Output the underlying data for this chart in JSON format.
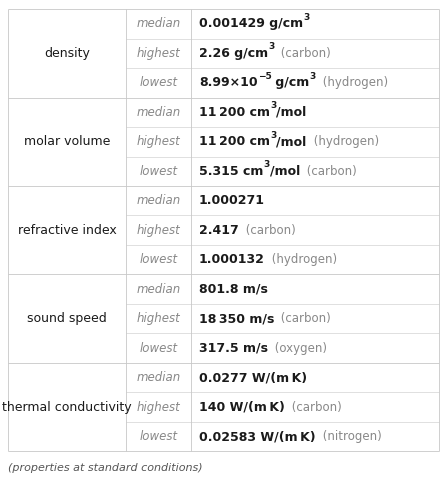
{
  "rows": [
    {
      "property": "density",
      "entries": [
        {
          "rank": "median",
          "value_parts": [
            {
              "text": "0.001429 g/cm",
              "bold": true,
              "sup": null
            },
            {
              "text": "3",
              "bold": true,
              "sup": true
            }
          ],
          "suffix": ""
        },
        {
          "rank": "highest",
          "value_parts": [
            {
              "text": "2.26 g/cm",
              "bold": true,
              "sup": null
            },
            {
              "text": "3",
              "bold": true,
              "sup": true
            }
          ],
          "suffix": " (carbon)"
        },
        {
          "rank": "lowest",
          "value_parts": [
            {
              "text": "8.99×10",
              "bold": true,
              "sup": null
            },
            {
              "text": "−5",
              "bold": true,
              "sup": true
            },
            {
              "text": " g/cm",
              "bold": true,
              "sup": null
            },
            {
              "text": "3",
              "bold": true,
              "sup": true
            }
          ],
          "suffix": " (hydrogen)"
        }
      ]
    },
    {
      "property": "molar volume",
      "entries": [
        {
          "rank": "median",
          "value_parts": [
            {
              "text": "11 200 cm",
              "bold": true,
              "sup": null
            },
            {
              "text": "3",
              "bold": true,
              "sup": true
            },
            {
              "text": "/mol",
              "bold": true,
              "sup": null
            }
          ],
          "suffix": ""
        },
        {
          "rank": "highest",
          "value_parts": [
            {
              "text": "11 200 cm",
              "bold": true,
              "sup": null
            },
            {
              "text": "3",
              "bold": true,
              "sup": true
            },
            {
              "text": "/mol",
              "bold": true,
              "sup": null
            }
          ],
          "suffix": " (hydrogen)"
        },
        {
          "rank": "lowest",
          "value_parts": [
            {
              "text": "5.315 cm",
              "bold": true,
              "sup": null
            },
            {
              "text": "3",
              "bold": true,
              "sup": true
            },
            {
              "text": "/mol",
              "bold": true,
              "sup": null
            }
          ],
          "suffix": " (carbon)"
        }
      ]
    },
    {
      "property": "refractive index",
      "entries": [
        {
          "rank": "median",
          "value_parts": [
            {
              "text": "1.000271",
              "bold": true,
              "sup": null
            }
          ],
          "suffix": ""
        },
        {
          "rank": "highest",
          "value_parts": [
            {
              "text": "2.417",
              "bold": true,
              "sup": null
            }
          ],
          "suffix": " (carbon)"
        },
        {
          "rank": "lowest",
          "value_parts": [
            {
              "text": "1.000132",
              "bold": true,
              "sup": null
            }
          ],
          "suffix": " (hydrogen)"
        }
      ]
    },
    {
      "property": "sound speed",
      "entries": [
        {
          "rank": "median",
          "value_parts": [
            {
              "text": "801.8 m/s",
              "bold": true,
              "sup": null
            }
          ],
          "suffix": ""
        },
        {
          "rank": "highest",
          "value_parts": [
            {
              "text": "18 350 m/s",
              "bold": true,
              "sup": null
            }
          ],
          "suffix": " (carbon)"
        },
        {
          "rank": "lowest",
          "value_parts": [
            {
              "text": "317.5 m/s",
              "bold": true,
              "sup": null
            }
          ],
          "suffix": " (oxygen)"
        }
      ]
    },
    {
      "property": "thermal conductivity",
      "entries": [
        {
          "rank": "median",
          "value_parts": [
            {
              "text": "0.0277 W/(m K)",
              "bold": true,
              "sup": null
            }
          ],
          "suffix": ""
        },
        {
          "rank": "highest",
          "value_parts": [
            {
              "text": "140 W/(m K)",
              "bold": true,
              "sup": null
            }
          ],
          "suffix": " (carbon)"
        },
        {
          "rank": "lowest",
          "value_parts": [
            {
              "text": "0.02583 W/(m K)",
              "bold": true,
              "sup": null
            }
          ],
          "suffix": " (nitrogen)"
        }
      ]
    }
  ],
  "footer": "(properties at standard conditions)",
  "bg_color": "#ffffff",
  "line_color": "#c8c8c8",
  "prop_color": "#1a1a1a",
  "rank_color": "#888888",
  "val_color": "#1a1a1a",
  "suf_color": "#888888",
  "footer_color": "#555555"
}
